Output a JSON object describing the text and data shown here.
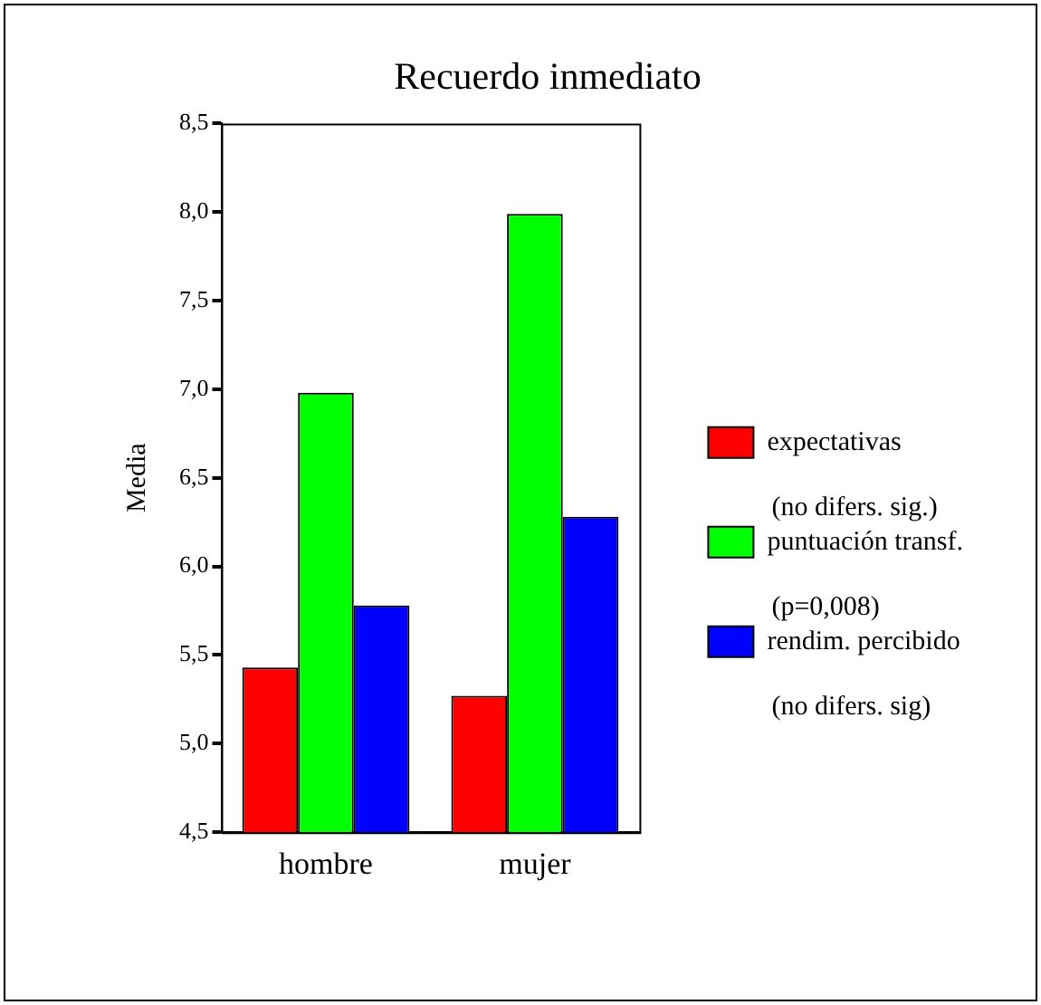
{
  "chart_data": {
    "type": "bar",
    "title": "Recuerdo inmediato",
    "ylabel": "Media",
    "categories": [
      "hombre",
      "mujer"
    ],
    "series": [
      {
        "name": "expectativas",
        "color": "#ff0000",
        "values": [
          5.43,
          5.27
        ]
      },
      {
        "name": "puntuación transf.",
        "color": "#00ff00",
        "values": [
          6.98,
          7.99
        ]
      },
      {
        "name": "rendim. percibido",
        "color": "#0000ff",
        "values": [
          5.78,
          6.28
        ]
      }
    ],
    "annotations": [
      "(no difers. sig.)",
      "(p=0,008)",
      "(no difers. sig)"
    ],
    "ylim": [
      4.5,
      8.5
    ],
    "yticks": [
      {
        "value": 4.5,
        "label": "4,5"
      },
      {
        "value": 5,
        "label": "5,0"
      },
      {
        "value": 5.5,
        "label": "5,5"
      },
      {
        "value": 6,
        "label": "6,0"
      },
      {
        "value": 6.5,
        "label": "6,5"
      },
      {
        "value": 7,
        "label": "7,0"
      },
      {
        "value": 7.5,
        "label": "7,5"
      },
      {
        "value": 8,
        "label": "8,0"
      },
      {
        "value": 8.5,
        "label": "8,5"
      }
    ],
    "grid": false,
    "legend": "right"
  }
}
